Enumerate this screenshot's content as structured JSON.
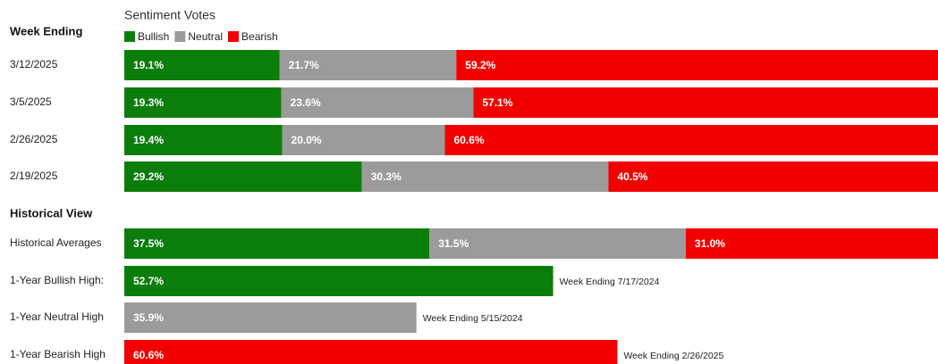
{
  "chart_data": [
    {
      "type": "bar",
      "orientation": "horizontal",
      "stacked": true,
      "title": "Sentiment Votes",
      "category_label": "Week Ending",
      "categories": [
        "3/12/2025",
        "3/5/2025",
        "2/26/2025",
        "2/19/2025"
      ],
      "series": [
        {
          "name": "Bullish",
          "color": "#0b7d0b",
          "values": [
            19.1,
            19.3,
            19.4,
            29.2
          ],
          "value_labels": [
            "19.1%",
            "19.3%",
            "19.4%",
            "29.2%"
          ]
        },
        {
          "name": "Neutral",
          "color": "#9b9b9b",
          "values": [
            21.7,
            23.6,
            20.0,
            30.3
          ],
          "value_labels": [
            "21.7%",
            "23.6%",
            "20.0%",
            "30.3%"
          ]
        },
        {
          "name": "Bearish",
          "color": "#f20000",
          "values": [
            59.2,
            57.1,
            60.6,
            40.5
          ],
          "value_labels": [
            "59.2%",
            "57.1%",
            "60.6%",
            "40.5%"
          ]
        }
      ]
    },
    {
      "type": "bar",
      "orientation": "horizontal",
      "stacked": true,
      "category_label": "Historical View",
      "categories": [
        "Historical Averages",
        "1-Year Bullish High:",
        "1-Year Neutral High",
        "1-Year Bearish High"
      ],
      "series": [
        {
          "color": "#0b7d0b",
          "values": [
            37.5,
            52.7,
            null,
            null
          ],
          "value_labels": [
            "37.5%",
            "52.7%",
            null,
            null
          ]
        },
        {
          "color": "#9b9b9b",
          "values": [
            31.5,
            null,
            35.9,
            null
          ],
          "value_labels": [
            "31.5%",
            null,
            "35.9%",
            null
          ]
        },
        {
          "color": "#f20000",
          "values": [
            31.0,
            null,
            null,
            60.6
          ],
          "value_labels": [
            "31.0%",
            null,
            null,
            "60.6%"
          ]
        }
      ],
      "annotations": [
        null,
        "Week Ending 7/17/2024",
        "Week Ending 5/15/2024",
        "Week Ending 2/26/2025"
      ]
    }
  ]
}
